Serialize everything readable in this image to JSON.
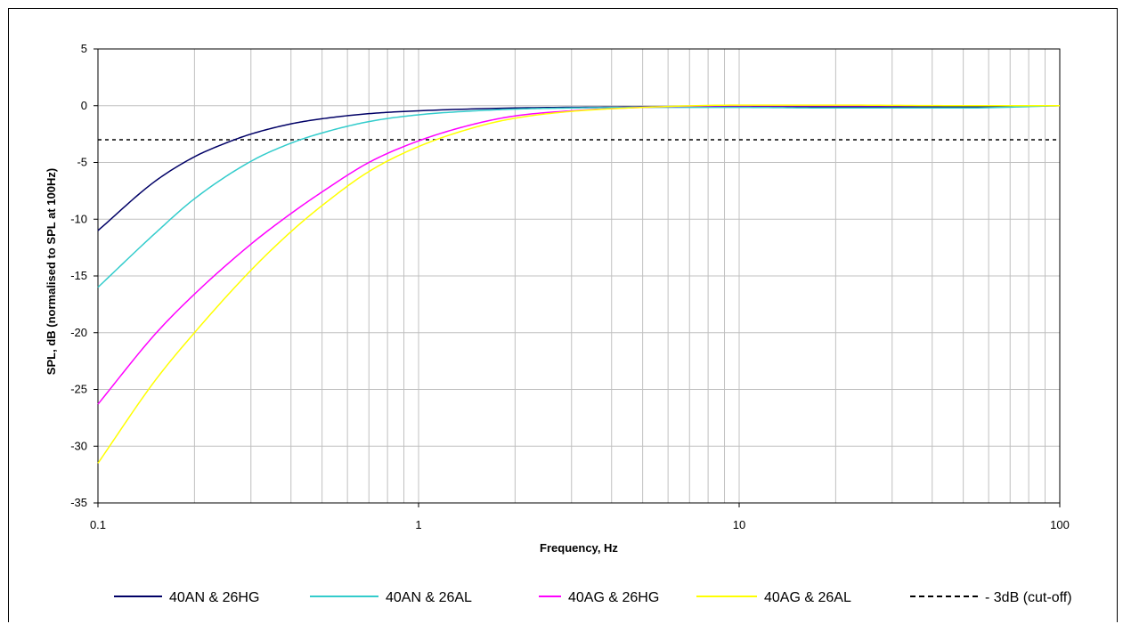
{
  "chart_data": {
    "type": "line",
    "xlabel": "Frequency, Hz",
    "ylabel": "SPL, dB (normalised to SPL at 100Hz)",
    "xscale": "log",
    "xlim": [
      0.1,
      100
    ],
    "ylim": [
      -35,
      5
    ],
    "x_ticks": [
      0.1,
      1,
      10,
      100
    ],
    "x_tick_labels": [
      "0.1",
      "1",
      "10",
      "100"
    ],
    "y_ticks": [
      5,
      0,
      -5,
      -10,
      -15,
      -20,
      -25,
      -30,
      -35
    ],
    "y_tick_labels": [
      "5",
      "0",
      "-5",
      "-10",
      "-15",
      "-20",
      "-25",
      "-30",
      "-35"
    ],
    "grid": true,
    "legend_position": "bottom",
    "series": [
      {
        "name": "40AN & 26HG",
        "color": "#000066",
        "x": [
          0.1,
          0.15,
          0.2,
          0.25,
          0.3,
          0.4,
          0.5,
          0.7,
          1,
          2,
          5,
          10,
          20,
          50,
          100
        ],
        "y": [
          -11,
          -6.7,
          -4.5,
          -3.3,
          -2.5,
          -1.6,
          -1.15,
          -0.7,
          -0.45,
          -0.2,
          -0.1,
          -0.05,
          -0.1,
          -0.1,
          0
        ]
      },
      {
        "name": "40AN & 26AL",
        "color": "#33CCCC",
        "x": [
          0.1,
          0.15,
          0.2,
          0.3,
          0.4,
          0.5,
          0.7,
          1,
          1.5,
          2,
          3,
          5,
          10,
          20,
          50,
          100
        ],
        "y": [
          -16,
          -11.3,
          -8.2,
          -4.9,
          -3.3,
          -2.4,
          -1.4,
          -0.8,
          -0.45,
          -0.3,
          -0.2,
          -0.15,
          -0.15,
          -0.2,
          -0.2,
          0
        ]
      },
      {
        "name": "40AG & 26HG",
        "color": "#FF00FF",
        "x": [
          0.1,
          0.15,
          0.2,
          0.3,
          0.4,
          0.5,
          0.7,
          1,
          1.5,
          2,
          3,
          5,
          10,
          20,
          50,
          100
        ],
        "y": [
          -26.3,
          -20.2,
          -16.6,
          -12.2,
          -9.5,
          -7.6,
          -5,
          -3.1,
          -1.6,
          -0.9,
          -0.45,
          -0.15,
          0,
          0,
          0,
          0
        ]
      },
      {
        "name": "40AG & 26AL",
        "color": "#FFFF00",
        "x": [
          0.1,
          0.15,
          0.2,
          0.3,
          0.4,
          0.5,
          0.7,
          1,
          1.5,
          2,
          3,
          5,
          10,
          20,
          50,
          100
        ],
        "y": [
          -31.5,
          -24.3,
          -20,
          -14.5,
          -11.1,
          -8.8,
          -5.8,
          -3.6,
          -1.9,
          -1.1,
          -0.5,
          -0.15,
          0.05,
          0.05,
          0,
          0
        ]
      },
      {
        "name": "- 3dB (cut-off)",
        "color": "#000000",
        "dashed": true,
        "x": [
          0.1,
          100
        ],
        "y": [
          -3,
          -3
        ]
      }
    ]
  }
}
